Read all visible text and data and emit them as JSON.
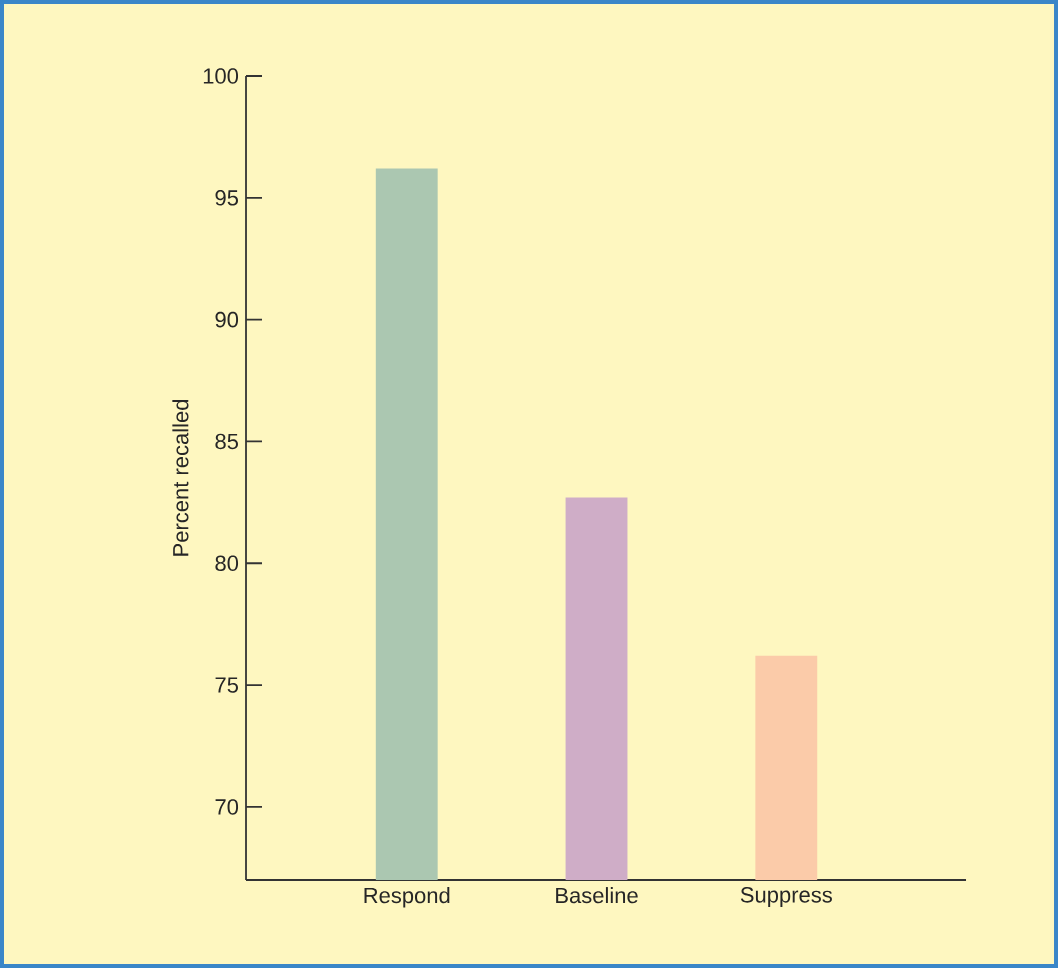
{
  "chart_data": {
    "type": "bar",
    "ylabel": "Percent recalled",
    "categories": [
      "Respond",
      "Baseline",
      "Suppress"
    ],
    "values": [
      96.2,
      82.7,
      76.2
    ],
    "colors": [
      "#abc7b1",
      "#cfadc7",
      "#fbcba9"
    ],
    "ylim": [
      67,
      100
    ],
    "yticks": [
      70,
      75,
      80,
      85,
      90,
      95,
      100
    ],
    "grid": false
  }
}
